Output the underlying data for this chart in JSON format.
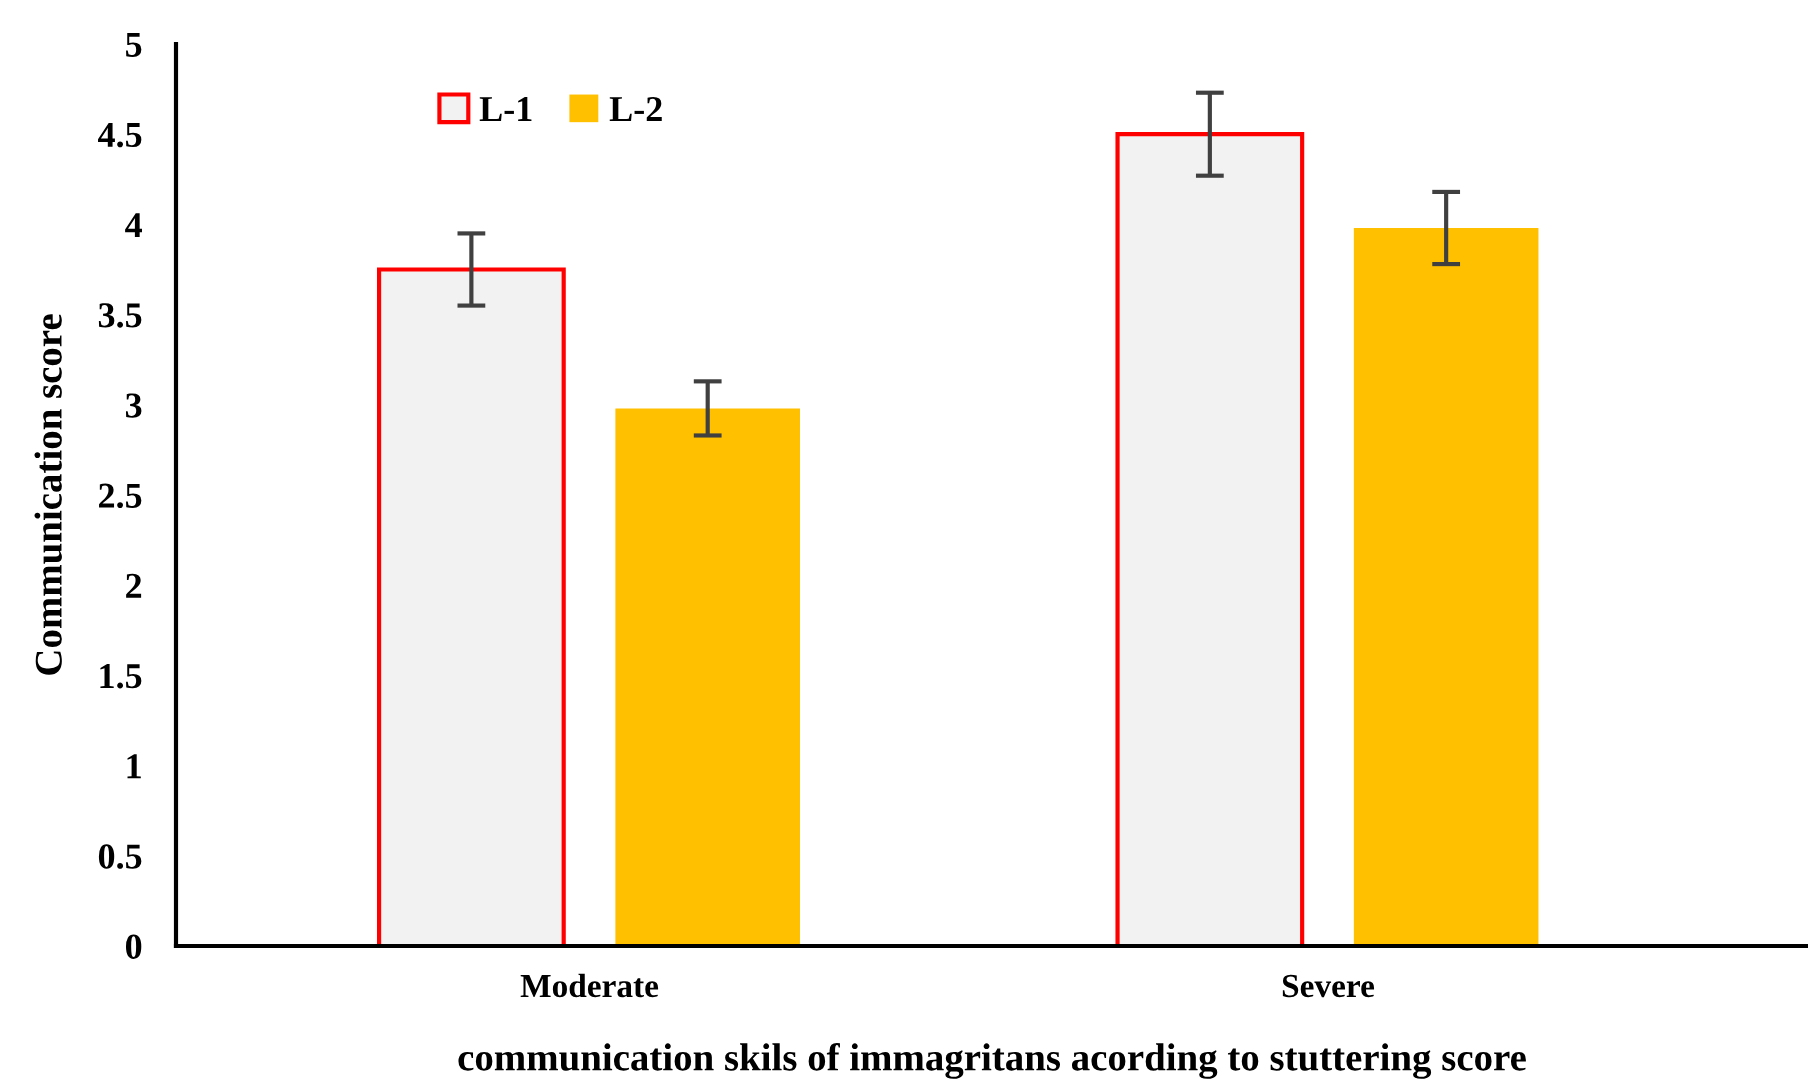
{
  "chart_data": {
    "type": "bar",
    "xlabel": "communication skils of immagritans acording to stuttering score",
    "ylabel": "Communication score",
    "categories": [
      "Moderate",
      "Severe"
    ],
    "series": [
      {
        "name": "L-1",
        "color": "#ff0000",
        "values": [
          3.75,
          4.5
        ],
        "errors": [
          0.2,
          0.23
        ]
      },
      {
        "name": "L-2",
        "color": "#ffc000",
        "values": [
          2.98,
          3.98
        ],
        "errors": [
          0.15,
          0.2
        ]
      }
    ],
    "ylim": [
      0,
      5
    ],
    "yticks": [
      0,
      0.5,
      1,
      1.5,
      2,
      2.5,
      3,
      3.5,
      4,
      4.5,
      5
    ],
    "grid": false,
    "legend": "top"
  }
}
